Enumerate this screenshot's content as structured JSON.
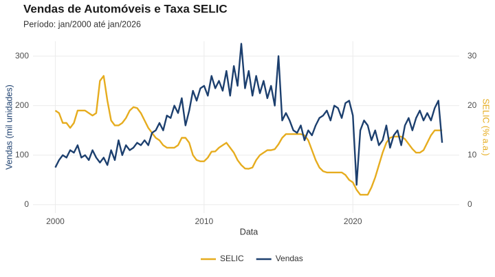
{
  "chart_data": {
    "type": "line",
    "title": "Vendas de Automóveis e Taxa SELIC",
    "subtitle": "Período: jan/2000 até jan/2026",
    "x_label": "Data",
    "y_label": "Vendas (mil unidades)",
    "y2_label": "SELIC (% a.a.)",
    "xlim": [
      1998.5,
      2027.15
    ],
    "xticks": [
      2000,
      2010,
      2020
    ],
    "ylim": [
      -17,
      330
    ],
    "yticks": [
      0,
      100,
      200,
      300
    ],
    "y2lim": [
      -1.7,
      33
    ],
    "y2ticks": [
      0,
      10,
      20,
      30
    ],
    "grid": true,
    "legend": "bottom",
    "x": [
      2000,
      2000.25,
      2000.5,
      2000.75,
      2001,
      2001.25,
      2001.5,
      2001.75,
      2002,
      2002.25,
      2002.5,
      2002.75,
      2003,
      2003.25,
      2003.5,
      2003.75,
      2004,
      2004.25,
      2004.5,
      2004.75,
      2005,
      2005.25,
      2005.5,
      2005.75,
      2006,
      2006.25,
      2006.5,
      2006.75,
      2007,
      2007.25,
      2007.5,
      2007.75,
      2008,
      2008.25,
      2008.5,
      2008.75,
      2009,
      2009.25,
      2009.5,
      2009.75,
      2010,
      2010.25,
      2010.5,
      2010.75,
      2011,
      2011.25,
      2011.5,
      2011.75,
      2012,
      2012.25,
      2012.5,
      2012.75,
      2013,
      2013.25,
      2013.5,
      2013.75,
      2014,
      2014.25,
      2014.5,
      2014.75,
      2015,
      2015.25,
      2015.5,
      2015.75,
      2016,
      2016.25,
      2016.5,
      2016.75,
      2017,
      2017.25,
      2017.5,
      2017.75,
      2018,
      2018.25,
      2018.5,
      2018.75,
      2019,
      2019.25,
      2019.5,
      2019.75,
      2020,
      2020.25,
      2020.5,
      2020.75,
      2021,
      2021.25,
      2021.5,
      2021.75,
      2022,
      2022.25,
      2022.5,
      2022.75,
      2023,
      2023.25,
      2023.5,
      2023.75,
      2024,
      2024.25,
      2024.5,
      2024.75,
      2025,
      2025.25,
      2025.5,
      2025.75,
      2026
    ],
    "series": [
      {
        "name": "SELIC",
        "color": "#e6ac1e",
        "axis": "y2",
        "values": [
          19,
          18.5,
          16.5,
          16.5,
          15.5,
          16.5,
          19,
          19,
          19,
          18.5,
          18,
          18.5,
          25,
          26,
          21,
          17,
          16,
          16,
          16.5,
          17.5,
          19,
          19.7,
          19.5,
          18.5,
          17,
          15.5,
          14.5,
          13.5,
          13,
          12,
          11.5,
          11.5,
          11.5,
          12,
          13.5,
          13.5,
          12.5,
          10,
          9,
          8.75,
          8.75,
          9.5,
          10.7,
          10.75,
          11.5,
          12,
          12.5,
          11.5,
          10.5,
          9,
          8,
          7.3,
          7.25,
          7.5,
          9,
          10,
          10.5,
          11,
          11,
          11.2,
          12.2,
          13.5,
          14.25,
          14.25,
          14.25,
          14.25,
          14.25,
          14,
          13,
          11,
          9,
          7.5,
          6.75,
          6.5,
          6.5,
          6.5,
          6.5,
          6.5,
          6,
          5,
          4.5,
          3,
          2,
          2,
          2,
          3.5,
          5.5,
          8,
          10.5,
          12.5,
          13.5,
          13.75,
          13.75,
          13.75,
          13.25,
          12.25,
          11.25,
          10.5,
          10.5,
          11,
          12.5,
          14,
          15,
          15,
          15
        ]
      },
      {
        "name": "Vendas",
        "color": "#1c3f6e",
        "values": [
          75,
          90,
          100,
          95,
          110,
          105,
          120,
          95,
          100,
          90,
          110,
          95,
          85,
          95,
          80,
          110,
          90,
          130,
          100,
          120,
          110,
          115,
          125,
          120,
          130,
          120,
          145,
          150,
          165,
          150,
          180,
          175,
          200,
          185,
          215,
          160,
          190,
          230,
          210,
          235,
          240,
          220,
          260,
          235,
          250,
          230,
          270,
          220,
          280,
          240,
          325,
          235,
          270,
          220,
          260,
          225,
          250,
          215,
          240,
          200,
          300,
          170,
          185,
          170,
          150,
          145,
          160,
          130,
          150,
          140,
          160,
          175,
          180,
          190,
          170,
          200,
          195,
          175,
          205,
          210,
          180,
          40,
          150,
          170,
          160,
          130,
          150,
          120,
          130,
          160,
          115,
          140,
          150,
          120,
          160,
          175,
          150,
          175,
          190,
          170,
          185,
          170,
          195,
          210,
          125
        ]
      }
    ]
  }
}
